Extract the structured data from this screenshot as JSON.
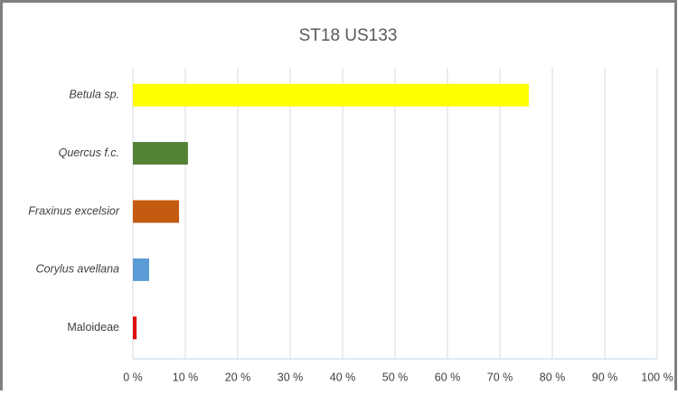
{
  "chart_data": {
    "type": "barh",
    "title": "ST18 US133",
    "categories": [
      "Betula sp.",
      "Quercus f.c.",
      "Fraxinus excelsior",
      "Corylus avellana",
      "Maloideae"
    ],
    "values": [
      75.5,
      10.5,
      8.8,
      3.1,
      0.7
    ],
    "colors": [
      "#ffff00",
      "#548235",
      "#c55a11",
      "#5b9bd5",
      "#e00000"
    ],
    "xlim": [
      0,
      100
    ],
    "xticks": [
      {
        "value": 0,
        "label": "0 %"
      },
      {
        "value": 10,
        "label": "10 %"
      },
      {
        "value": 20,
        "label": "20 %"
      },
      {
        "value": 30,
        "label": "30 %"
      },
      {
        "value": 40,
        "label": "40 %"
      },
      {
        "value": 50,
        "label": "50 %"
      },
      {
        "value": 60,
        "label": "60 %"
      },
      {
        "value": 70,
        "label": "70 %"
      },
      {
        "value": 80,
        "label": "80 %"
      },
      {
        "value": 90,
        "label": "90 %"
      },
      {
        "value": 100,
        "label": "100 %"
      }
    ],
    "grid": true
  }
}
